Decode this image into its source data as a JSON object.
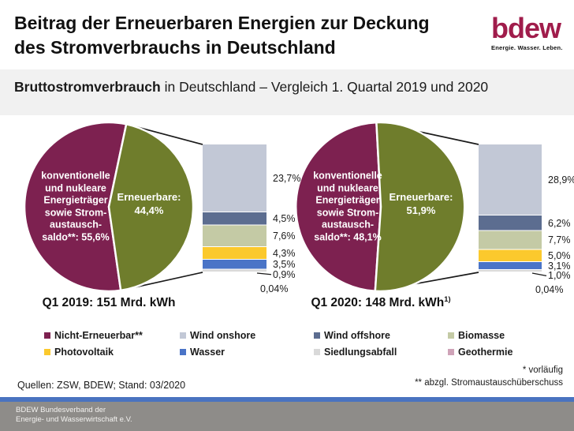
{
  "header": {
    "title_line1": "Beitrag der Erneuerbaren Energien zur Deckung",
    "title_line2": "des Stromverbrauchs in Deutschland",
    "logo_text": "bdew",
    "logo_tagline": "Energie. Wasser. Leben."
  },
  "subtitle": {
    "bold": "Bruttostromverbrauch",
    "rest": " in Deutschland – Vergleich 1. Quartal 2019 und 2020"
  },
  "chart_data": {
    "type": "pie-of-pie",
    "title": "Bruttostromverbrauch in Deutschland – Vergleich 1. Quartal 2019 und 2020",
    "unit": "Mrd. kWh",
    "bar_categories": [
      "Wind onshore",
      "Wind offshore",
      "Biomasse",
      "Photovoltaik",
      "Wasser",
      "Siedlungsabfall",
      "Geothermie"
    ],
    "charts": [
      {
        "period": "Q1 2019",
        "caption": "Q1 2019: 151 Mrd. kWh",
        "caption_sup": "",
        "total_mrd_kwh": 151,
        "pie": {
          "non_renewable_pct": 55.6,
          "renewable_pct": 44.4,
          "non_renewable_label_lines": [
            "konventionelle",
            "und nukleare",
            "Energieträger",
            "sowie Strom-",
            "austausch-",
            "saldo**: 55,6%"
          ],
          "renewable_label_lines": [
            "Erneuerbare:",
            "44,4%"
          ],
          "green_start_deg": 12
        },
        "bar_values": [
          23.7,
          4.5,
          7.6,
          4.3,
          3.5,
          0.9,
          0.04
        ],
        "bar_labels": [
          "23,7%",
          "4,5%",
          "7,6%",
          "4,3%",
          "3,5%",
          "0,9%",
          "0,04%"
        ]
      },
      {
        "period": "Q1 2020",
        "caption": "Q1 2020: 148 Mrd. kWh",
        "caption_sup": "1)",
        "total_mrd_kwh": 148,
        "pie": {
          "non_renewable_pct": 48.1,
          "renewable_pct": 51.9,
          "non_renewable_label_lines": [
            "konventionelle",
            "und nukleare",
            "Energieträger",
            "sowie Strom-",
            "austausch-",
            "saldo**: 48,1%"
          ],
          "renewable_label_lines": [
            "Erneuerbare:",
            "51,9%"
          ],
          "green_start_deg": -3
        },
        "bar_values": [
          28.9,
          6.2,
          7.7,
          5.0,
          3.1,
          1.0,
          0.04
        ],
        "bar_labels": [
          "28,9%",
          "6,2%",
          "7,7%",
          "5,0%",
          "3,1%",
          "1,0%",
          "0,04%"
        ]
      }
    ],
    "colors": {
      "non_renewable": "#7d2150",
      "renewable": "#6f7d2c",
      "wind_onshore": "#c2c8d6",
      "wind_offshore": "#5c6d90",
      "biomasse": "#c4caa5",
      "photovoltaik": "#fbc92d",
      "wasser": "#4a74c7",
      "siedlungsabfall": "#d9d9d9",
      "geothermie": "#cfa3b8"
    }
  },
  "legend": {
    "items": [
      {
        "label": "Nicht-Erneuerbar**",
        "color": "#7d2150"
      },
      {
        "label": "Wind onshore",
        "color": "#c2c8d6"
      },
      {
        "label": "Wind offshore",
        "color": "#5c6d90"
      },
      {
        "label": "Biomasse",
        "color": "#c4caa5"
      },
      {
        "label": "Photovoltaik",
        "color": "#fbc92d"
      },
      {
        "label": "Wasser",
        "color": "#4a74c7"
      },
      {
        "label": "Siedlungsabfall",
        "color": "#d9d9d9"
      },
      {
        "label": "Geothermie",
        "color": "#cfa3b8"
      }
    ]
  },
  "notes": {
    "source": "Quellen: ZSW, BDEW; Stand: 03/2020",
    "footnote1": "* vorläufig",
    "footnote2": "** abzgl. Stromaustauschüberschuss"
  },
  "footer": {
    "line1": "BDEW Bundesverband der",
    "line2": "Energie- und Wasserwirtschaft e.V."
  }
}
